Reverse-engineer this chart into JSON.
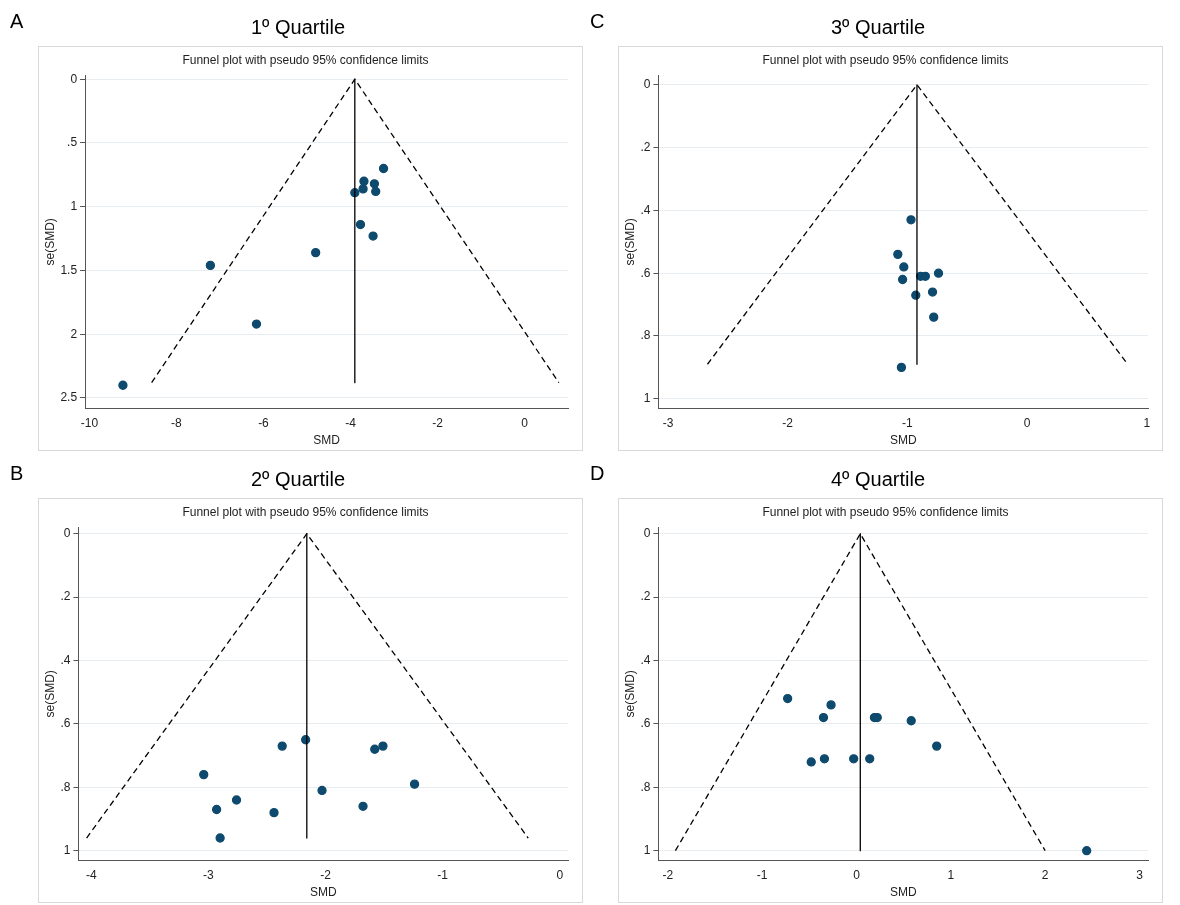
{
  "chart_data": [
    {
      "type": "scatter",
      "annotations": [
        "A"
      ],
      "title": "1º Quartile",
      "subtitle": "Funnel plot with pseudo 95% confidence limits",
      "xlabel": "SMD",
      "ylabel": "se(SMD)",
      "xlim": [
        -10.1,
        1
      ],
      "ylim": [
        2.58,
        -0.03
      ],
      "xticks": [
        -10,
        -8,
        -6,
        -4,
        -2,
        0
      ],
      "yticks": [
        0,
        {
          "value": 0.5,
          "label": ".5"
        },
        1,
        1.5,
        2,
        2.5
      ],
      "grid": "y",
      "legend": false,
      "series": [
        {
          "type": "line",
          "line_style": "dashed",
          "marker": "none",
          "color": "#000000",
          "x": [
            -8.57,
            -3.9,
            0.79
          ],
          "values": [
            2.38,
            0,
            2.38
          ]
        },
        {
          "type": "line",
          "line_style": "solid",
          "marker": "none",
          "color": "#000000",
          "x": [
            -3.9,
            -3.9
          ],
          "values": [
            0,
            2.38
          ]
        },
        {
          "type": "scatter",
          "marker": "circle",
          "color": "#0e4a6e",
          "x": [
            -3.24,
            -3.69,
            -3.45,
            -3.71,
            -3.42,
            -3.9,
            -3.77,
            -3.48,
            -4.8,
            -7.22,
            -6.16,
            -9.23
          ],
          "values": [
            0.7,
            0.8,
            0.82,
            0.86,
            0.88,
            0.89,
            1.14,
            1.23,
            1.36,
            1.46,
            1.92,
            2.4
          ]
        }
      ]
    },
    {
      "type": "scatter",
      "annotations": [
        "C"
      ],
      "title": "3º Quartile",
      "subtitle": "Funnel plot with pseudo 95% confidence limits",
      "xlabel": "SMD",
      "ylabel": "se(SMD)",
      "xlim": [
        -3.08,
        1.01
      ],
      "ylim": [
        1.03,
        -0.03
      ],
      "xticks": [
        -3,
        -2,
        -1,
        0,
        1
      ],
      "yticks": [
        0,
        {
          "value": 0.2,
          "label": ".2"
        },
        {
          "value": 0.4,
          "label": ".4"
        },
        {
          "value": 0.6,
          "label": ".6"
        },
        {
          "value": 0.8,
          "label": ".8"
        },
        1
      ],
      "grid": "y",
      "legend": false,
      "series": [
        {
          "type": "line",
          "line_style": "dashed",
          "marker": "none",
          "color": "#000000",
          "x": [
            -2.67,
            -0.92,
            0.84
          ],
          "values": [
            0.89,
            0,
            0.89
          ]
        },
        {
          "type": "line",
          "line_style": "solid",
          "marker": "none",
          "color": "#000000",
          "x": [
            -0.92,
            -0.92
          ],
          "values": [
            0,
            0.89
          ]
        },
        {
          "type": "scatter",
          "marker": "circle",
          "color": "#0e4a6e",
          "x": [
            -0.97,
            -1.08,
            -1.03,
            -1.04,
            -0.89,
            -0.85,
            -0.74,
            -0.93,
            -0.79,
            -0.78,
            -1.05
          ],
          "values": [
            0.43,
            0.54,
            0.58,
            0.62,
            0.61,
            0.61,
            0.6,
            0.67,
            0.66,
            0.74,
            0.9
          ]
        }
      ]
    },
    {
      "type": "scatter",
      "annotations": [
        "B"
      ],
      "title": "2º Quartile",
      "subtitle": "Funnel plot with pseudo 95% confidence limits",
      "xlabel": "SMD",
      "ylabel": "se(SMD)",
      "xlim": [
        -4.11,
        0.07
      ],
      "ylim": [
        1.03,
        -0.02
      ],
      "xticks": [
        -4,
        -3,
        -2,
        -1,
        0
      ],
      "yticks": [
        0,
        {
          "value": 0.2,
          "label": ".2"
        },
        {
          "value": 0.4,
          "label": ".4"
        },
        {
          "value": 0.6,
          "label": ".6"
        },
        {
          "value": 0.8,
          "label": ".8"
        },
        1
      ],
      "grid": "y",
      "legend": false,
      "series": [
        {
          "type": "line",
          "line_style": "dashed",
          "marker": "none",
          "color": "#000000",
          "x": [
            -4.04,
            -2.16,
            -0.27
          ],
          "values": [
            0.96,
            0,
            0.96
          ]
        },
        {
          "type": "line",
          "line_style": "solid",
          "marker": "none",
          "color": "#000000",
          "x": [
            -2.16,
            -2.16
          ],
          "values": [
            0,
            0.96
          ]
        },
        {
          "type": "scatter",
          "marker": "circle",
          "color": "#0e4a6e",
          "x": [
            -2.17,
            -2.37,
            -1.58,
            -1.51,
            -3.04,
            -1.24,
            -2.03,
            -2.76,
            -1.68,
            -2.93,
            -2.44,
            -2.9
          ],
          "values": [
            0.65,
            0.67,
            0.68,
            0.67,
            0.76,
            0.79,
            0.81,
            0.84,
            0.86,
            0.87,
            0.88,
            0.96
          ]
        }
      ]
    },
    {
      "type": "scatter",
      "annotations": [
        "D"
      ],
      "title": "4º Quartile",
      "subtitle": "Funnel plot with pseudo 95% confidence limits",
      "xlabel": "SMD",
      "ylabel": "se(SMD)",
      "xlim": [
        -2.1,
        3.09
      ],
      "ylim": [
        1.03,
        -0.02
      ],
      "xticks": [
        -2,
        -1,
        0,
        1,
        2,
        3
      ],
      "yticks": [
        0,
        {
          "value": 0.2,
          "label": ".2"
        },
        {
          "value": 0.4,
          "label": ".4"
        },
        {
          "value": 0.6,
          "label": ".6"
        },
        {
          "value": 0.8,
          "label": ".8"
        },
        1
      ],
      "grid": "y",
      "legend": false,
      "series": [
        {
          "type": "line",
          "line_style": "dashed",
          "marker": "none",
          "color": "#000000",
          "x": [
            -1.92,
            0.04,
            2.0
          ],
          "values": [
            1.0,
            0,
            1.0
          ]
        },
        {
          "type": "line",
          "line_style": "solid",
          "marker": "none",
          "color": "#000000",
          "x": [
            0.04,
            0.04
          ],
          "values": [
            0,
            1.0
          ]
        },
        {
          "type": "scatter",
          "marker": "circle",
          "color": "#0e4a6e",
          "x": [
            -0.73,
            -0.27,
            -0.35,
            0.19,
            0.22,
            0.58,
            0.85,
            -0.48,
            -0.34,
            -0.03,
            0.14,
            2.44
          ],
          "values": [
            0.52,
            0.54,
            0.58,
            0.58,
            0.58,
            0.59,
            0.67,
            0.72,
            0.71,
            0.71,
            0.71,
            1.0
          ]
        }
      ]
    }
  ]
}
